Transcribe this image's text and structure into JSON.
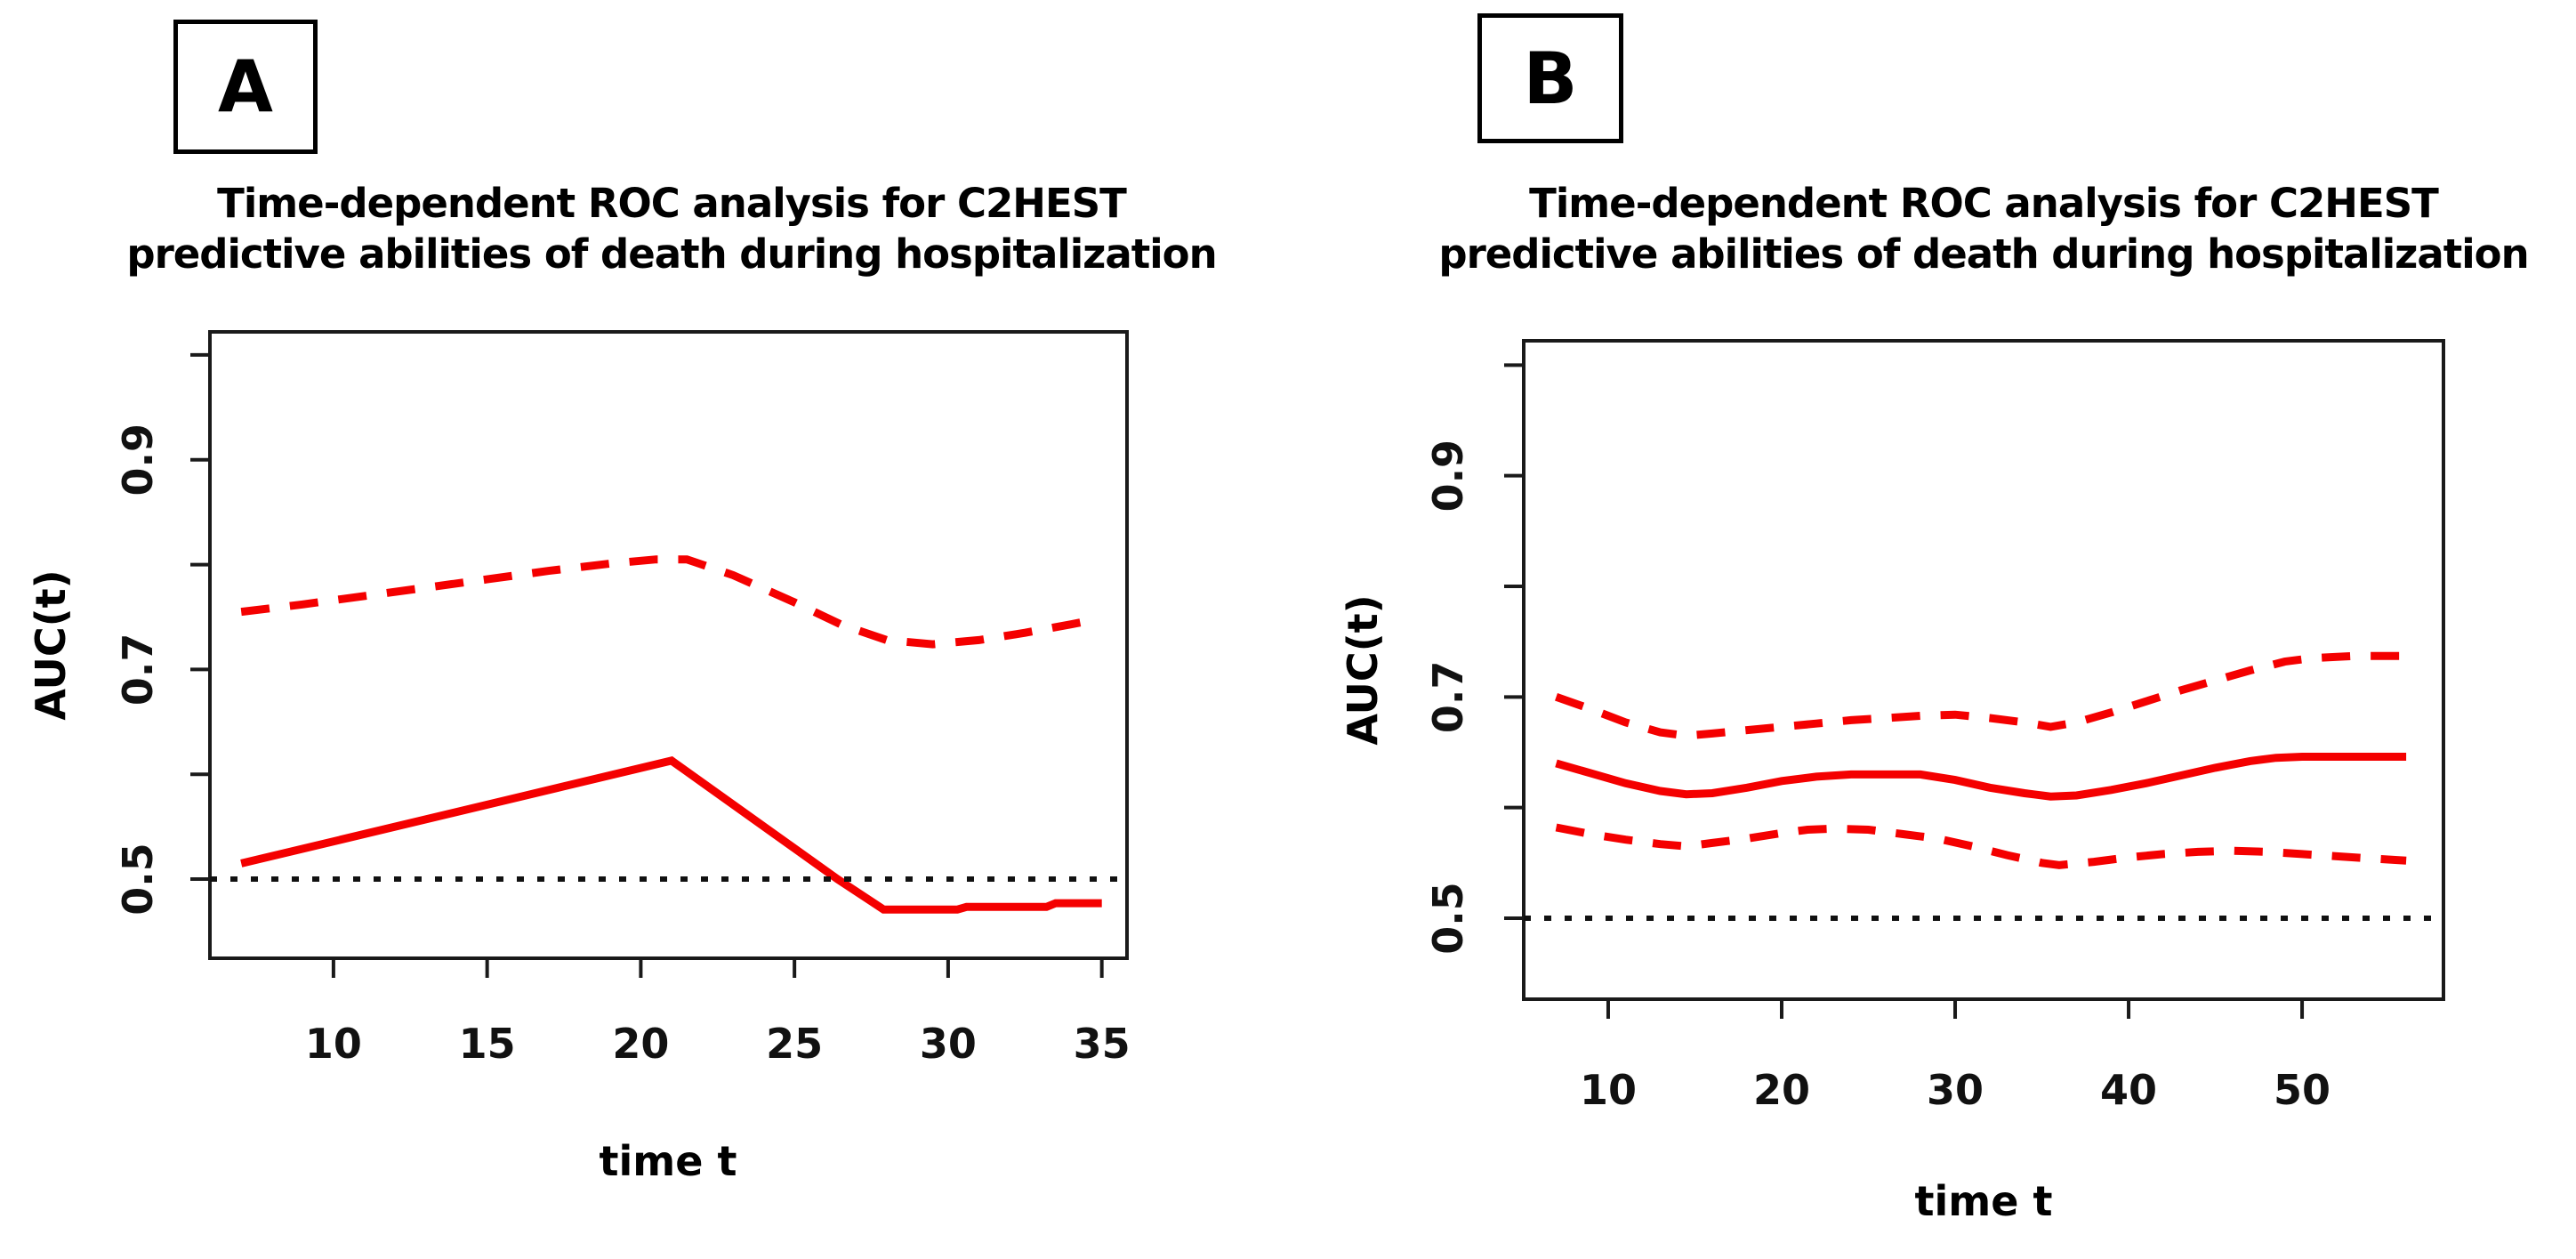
{
  "figure": {
    "background": "#ffffff",
    "colors": {
      "series_red": "#f40000",
      "axis_black": "#1a1a1a",
      "reference_black": "#111111"
    },
    "panels": [
      {
        "label": "A",
        "title_line1": "Time-dependent ROC analysis for C2HEST",
        "title_line2": "predictive abilities of death during hospitalization"
      },
      {
        "label": "B",
        "title_line1": "Time-dependent ROC analysis for C2HEST",
        "title_line2": "predictive abilities of death during hospitalization"
      }
    ]
  },
  "chart_data": [
    {
      "type": "line",
      "panel": "A",
      "title": "Time-dependent ROC analysis for C2HEST predictive abilities of death during hospitalization",
      "xlabel": "time t",
      "ylabel": "AUC(t)",
      "xlim": [
        5.98,
        35.82
      ],
      "ylim": [
        0.4245,
        1.022
      ],
      "x_ticks": [
        10,
        15,
        20,
        25,
        30,
        35
      ],
      "y_ticks": [
        0.5,
        0.6,
        0.7,
        0.8,
        0.9,
        1.0
      ],
      "y_tick_labels": [
        "0.5",
        "",
        "0.7",
        "",
        "0.9",
        ""
      ],
      "grid": false,
      "legend": "none",
      "series": [
        {
          "name": "AUC(t) estimate",
          "style": "solid",
          "color": "#f40000",
          "points": [
            [
              7,
              0.515
            ],
            [
              21,
              0.613
            ],
            [
              26.4,
              0.5
            ],
            [
              27.9,
              0.471
            ],
            [
              30.3,
              0.471
            ],
            [
              30.6,
              0.4735
            ],
            [
              33.2,
              0.4735
            ],
            [
              33.5,
              0.477
            ],
            [
              35,
              0.477
            ]
          ]
        },
        {
          "name": "95% CI upper bound",
          "style": "dashed",
          "color": "#f40000",
          "points": [
            [
              7,
              0.755
            ],
            [
              9,
              0.762
            ],
            [
              11,
              0.77
            ],
            [
              13,
              0.778
            ],
            [
              15,
              0.786
            ],
            [
              17,
              0.794
            ],
            [
              19,
              0.801
            ],
            [
              20.5,
              0.805
            ],
            [
              21.5,
              0.805
            ],
            [
              23,
              0.79
            ],
            [
              25,
              0.764
            ],
            [
              26.5,
              0.743
            ],
            [
              28,
              0.728
            ],
            [
              29.5,
              0.724
            ],
            [
              31,
              0.728
            ],
            [
              32.5,
              0.735
            ],
            [
              34,
              0.743
            ],
            [
              34.7,
              0.747
            ]
          ]
        },
        {
          "name": "reference AUC = 0.5",
          "style": "dotted",
          "color": "#111111",
          "points": [
            [
              5.98,
              0.5
            ],
            [
              35.82,
              0.5
            ]
          ]
        }
      ]
    },
    {
      "type": "line",
      "panel": "B",
      "title": "Time-dependent ROC analysis for C2HEST predictive abilities of death during hospitalization",
      "xlabel": "time t",
      "ylabel": "AUC(t)",
      "xlim": [
        5.13,
        58.15
      ],
      "ylim": [
        0.4268,
        1.022
      ],
      "x_ticks": [
        10,
        20,
        30,
        40,
        50
      ],
      "y_ticks": [
        0.5,
        0.6,
        0.7,
        0.8,
        0.9,
        1.0
      ],
      "y_tick_labels": [
        "0.5",
        "",
        "0.7",
        "",
        "0.9",
        ""
      ],
      "grid": false,
      "legend": "none",
      "series": [
        {
          "name": "AUC(t) estimate",
          "style": "solid",
          "color": "#f40000",
          "points": [
            [
              7,
              0.64
            ],
            [
              9,
              0.631
            ],
            [
              11,
              0.622
            ],
            [
              13,
              0.615
            ],
            [
              14.5,
              0.612
            ],
            [
              16,
              0.613
            ],
            [
              18,
              0.618
            ],
            [
              20,
              0.624
            ],
            [
              22,
              0.628
            ],
            [
              24,
              0.63
            ],
            [
              26,
              0.63
            ],
            [
              28,
              0.63
            ],
            [
              30,
              0.625
            ],
            [
              32,
              0.618
            ],
            [
              34,
              0.613
            ],
            [
              35.5,
              0.61
            ],
            [
              37,
              0.611
            ],
            [
              39,
              0.616
            ],
            [
              41,
              0.622
            ],
            [
              43,
              0.629
            ],
            [
              45,
              0.636
            ],
            [
              47,
              0.642
            ],
            [
              48.5,
              0.645
            ],
            [
              50,
              0.646
            ],
            [
              53,
              0.646
            ],
            [
              56,
              0.646
            ]
          ]
        },
        {
          "name": "95% CI upper bound",
          "style": "dashed",
          "color": "#f40000",
          "points": [
            [
              7,
              0.7
            ],
            [
              9,
              0.689
            ],
            [
              11,
              0.677
            ],
            [
              13,
              0.668
            ],
            [
              14.5,
              0.665
            ],
            [
              16,
              0.667
            ],
            [
              18,
              0.67
            ],
            [
              20,
              0.673
            ],
            [
              22,
              0.676
            ],
            [
              24,
              0.679
            ],
            [
              26,
              0.681
            ],
            [
              28,
              0.683
            ],
            [
              30,
              0.684
            ],
            [
              32,
              0.681
            ],
            [
              34,
              0.677
            ],
            [
              35.5,
              0.673
            ],
            [
              37,
              0.677
            ],
            [
              39,
              0.686
            ],
            [
              41,
              0.696
            ],
            [
              43,
              0.706
            ],
            [
              45,
              0.715
            ],
            [
              47,
              0.724
            ],
            [
              49,
              0.732
            ],
            [
              50.5,
              0.735
            ],
            [
              53,
              0.737
            ],
            [
              56,
              0.737
            ]
          ]
        },
        {
          "name": "95% CI lower bound",
          "style": "dashed",
          "color": "#f40000",
          "points": [
            [
              7,
              0.582
            ],
            [
              9,
              0.576
            ],
            [
              11,
              0.571
            ],
            [
              13,
              0.567
            ],
            [
              14.5,
              0.565
            ],
            [
              16,
              0.568
            ],
            [
              18,
              0.572
            ],
            [
              20,
              0.577
            ],
            [
              21.5,
              0.58
            ],
            [
              23,
              0.581
            ],
            [
              25,
              0.58
            ],
            [
              27,
              0.576
            ],
            [
              29,
              0.572
            ],
            [
              31,
              0.565
            ],
            [
              33,
              0.557
            ],
            [
              35,
              0.55
            ],
            [
              36,
              0.548
            ],
            [
              38,
              0.551
            ],
            [
              40,
              0.555
            ],
            [
              42,
              0.558
            ],
            [
              44,
              0.56
            ],
            [
              46,
              0.561
            ],
            [
              48,
              0.56
            ],
            [
              50,
              0.558
            ],
            [
              52,
              0.556
            ],
            [
              54,
              0.554
            ],
            [
              56,
              0.552
            ]
          ]
        },
        {
          "name": "reference AUC = 0.5",
          "style": "dotted",
          "color": "#111111",
          "points": [
            [
              5.13,
              0.5
            ],
            [
              58.15,
              0.5
            ]
          ]
        }
      ]
    }
  ]
}
